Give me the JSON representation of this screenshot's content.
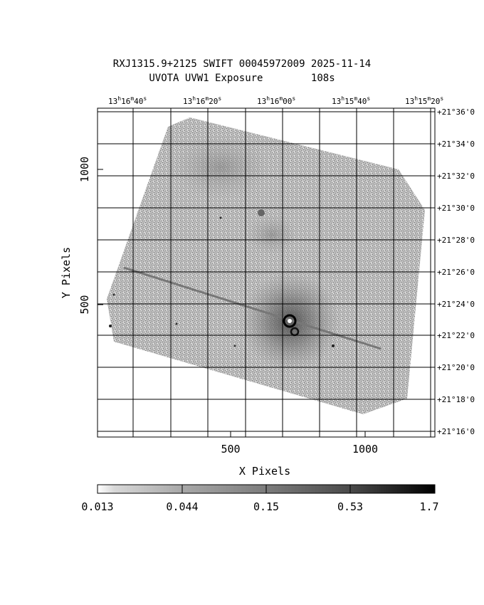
{
  "title": {
    "line1": "RXJ1315.9+2125 SWIFT 00045972009 2025-11-14",
    "line2": "UVOTA UVW1 Exposure        108s"
  },
  "axes": {
    "xlabel": "X Pixels",
    "ylabel": "Y Pixels",
    "x_ticks": [
      "500",
      "1000"
    ],
    "y_ticks": [
      "500",
      "1000"
    ],
    "ra_ticks": [
      {
        "h": "13",
        "m": "16",
        "s": "40"
      },
      {
        "h": "13",
        "m": "16",
        "s": "20"
      },
      {
        "h": "13",
        "m": "16",
        "s": "00"
      },
      {
        "h": "13",
        "m": "15",
        "s": "40"
      },
      {
        "h": "13",
        "m": "15",
        "s": "20"
      }
    ],
    "dec_ticks": [
      "+21°36'0",
      "+21°34'0",
      "+21°32'0",
      "+21°30'0",
      "+21°28'0",
      "+21°26'0",
      "+21°24'0",
      "+21°22'0",
      "+21°20'0",
      "+21°18'0",
      "+21°16'0"
    ]
  },
  "colorbar": {
    "labels": [
      "0.013",
      "0.044",
      "0.15",
      "0.53",
      "1.7"
    ],
    "scale": "log",
    "range": [
      0.013,
      1.7
    ]
  },
  "image_colors": {
    "background": "#ffffff",
    "exposure_low": "#a8a8a8",
    "exposure_high": "#6e6e6e",
    "source": "#000000"
  }
}
